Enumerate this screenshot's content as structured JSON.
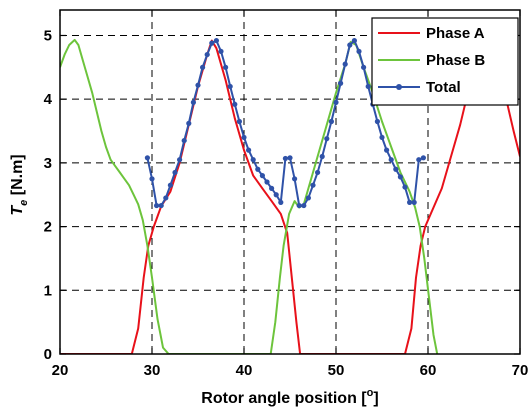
{
  "chart_data": {
    "type": "line",
    "title": "",
    "xlabel": "Rotor angle position [",
    "xlabel_sup": "o",
    "xlabel_suffix": "]",
    "ylabel_italic": "T",
    "ylabel_sub": "e",
    "ylabel_suffix": " [N.m]",
    "xlim": [
      20,
      70
    ],
    "ylim": [
      0,
      5.4
    ],
    "xticks": [
      20,
      30,
      40,
      50,
      60,
      70
    ],
    "yticks": [
      0,
      1,
      2,
      3,
      4,
      5
    ],
    "xtick_labels": [
      "20",
      "30",
      "40",
      "50",
      "60",
      "70"
    ],
    "ytick_labels": [
      "0",
      "1",
      "2",
      "3",
      "4",
      "5"
    ],
    "grid": true,
    "legend_position": "top-right",
    "series": [
      {
        "name": "Phase A",
        "color": "#e8111a",
        "marker": false,
        "points": [
          [
            20,
            0
          ],
          [
            27.8,
            0
          ],
          [
            28.5,
            0.4
          ],
          [
            29.1,
            1.2
          ],
          [
            29.6,
            1.7
          ],
          [
            30.2,
            2.0
          ],
          [
            31,
            2.32
          ],
          [
            32,
            2.55
          ],
          [
            33,
            3.0
          ],
          [
            34,
            3.6
          ],
          [
            35,
            4.2
          ],
          [
            36,
            4.7
          ],
          [
            36.5,
            4.92
          ],
          [
            37,
            4.8
          ],
          [
            38,
            4.3
          ],
          [
            39,
            3.7
          ],
          [
            40,
            3.2
          ],
          [
            41,
            2.8
          ],
          [
            42,
            2.6
          ],
          [
            43,
            2.4
          ],
          [
            44,
            2.2
          ],
          [
            44.7,
            1.9
          ],
          [
            45.2,
            1.2
          ],
          [
            45.7,
            0.5
          ],
          [
            46.1,
            0
          ],
          [
            57.5,
            0
          ],
          [
            58.2,
            0.4
          ],
          [
            58.7,
            1.2
          ],
          [
            59.2,
            1.7
          ],
          [
            59.7,
            2.0
          ],
          [
            60.6,
            2.3
          ],
          [
            61.5,
            2.6
          ],
          [
            62.5,
            3.1
          ],
          [
            63.5,
            3.6
          ],
          [
            64.5,
            4.2
          ],
          [
            65.3,
            4.6
          ],
          [
            66.5,
            4.9
          ],
          [
            67.5,
            4.5
          ],
          [
            68.5,
            4.0
          ],
          [
            69.3,
            3.5
          ],
          [
            70,
            3.1
          ]
        ]
      },
      {
        "name": "Phase B",
        "color": "#6dc43c",
        "marker": false,
        "points": [
          [
            20,
            4.5
          ],
          [
            20.5,
            4.7
          ],
          [
            21,
            4.85
          ],
          [
            21.6,
            4.93
          ],
          [
            22,
            4.85
          ],
          [
            22.5,
            4.6
          ],
          [
            23,
            4.35
          ],
          [
            23.5,
            4.1
          ],
          [
            24,
            3.8
          ],
          [
            24.5,
            3.5
          ],
          [
            25,
            3.25
          ],
          [
            25.5,
            3.05
          ],
          [
            26,
            2.95
          ],
          [
            26.5,
            2.85
          ],
          [
            27,
            2.75
          ],
          [
            27.5,
            2.65
          ],
          [
            28,
            2.5
          ],
          [
            28.5,
            2.35
          ],
          [
            29,
            2.1
          ],
          [
            29.5,
            1.7
          ],
          [
            30,
            1.2
          ],
          [
            30.6,
            0.55
          ],
          [
            31.2,
            0.1
          ],
          [
            31.8,
            0
          ],
          [
            42.9,
            0
          ],
          [
            43.4,
            0.5
          ],
          [
            43.9,
            1.2
          ],
          [
            44.3,
            1.7
          ],
          [
            44.9,
            2.2
          ],
          [
            45.5,
            2.4
          ],
          [
            46,
            2.3
          ],
          [
            46.5,
            2.35
          ],
          [
            47,
            2.6
          ],
          [
            48,
            3.1
          ],
          [
            49,
            3.6
          ],
          [
            50,
            4.1
          ],
          [
            51,
            4.55
          ],
          [
            51.6,
            4.9
          ],
          [
            52.2,
            4.85
          ],
          [
            53,
            4.5
          ],
          [
            54,
            4.1
          ],
          [
            55,
            3.65
          ],
          [
            56,
            3.25
          ],
          [
            57,
            2.85
          ],
          [
            58,
            2.55
          ],
          [
            58.6,
            2.3
          ],
          [
            59.1,
            2.0
          ],
          [
            59.6,
            1.5
          ],
          [
            60.1,
            0.9
          ],
          [
            60.6,
            0.3
          ],
          [
            61,
            0
          ]
        ]
      },
      {
        "name": "Total",
        "color": "#2f52a8",
        "marker": true,
        "points": [
          [
            29.5,
            3.08
          ],
          [
            30,
            2.75
          ],
          [
            30.5,
            2.33
          ],
          [
            31,
            2.33
          ],
          [
            31.5,
            2.45
          ],
          [
            32,
            2.65
          ],
          [
            32.5,
            2.85
          ],
          [
            33,
            3.05
          ],
          [
            33.5,
            3.35
          ],
          [
            34,
            3.62
          ],
          [
            34.5,
            3.95
          ],
          [
            35,
            4.22
          ],
          [
            35.5,
            4.5
          ],
          [
            36,
            4.7
          ],
          [
            36.5,
            4.88
          ],
          [
            37,
            4.92
          ],
          [
            37.5,
            4.75
          ],
          [
            38,
            4.5
          ],
          [
            38.5,
            4.2
          ],
          [
            39,
            3.92
          ],
          [
            39.5,
            3.65
          ],
          [
            40,
            3.4
          ],
          [
            40.5,
            3.2
          ],
          [
            41,
            3.05
          ],
          [
            41.5,
            2.9
          ],
          [
            42,
            2.8
          ],
          [
            42.5,
            2.7
          ],
          [
            43,
            2.6
          ],
          [
            43.5,
            2.5
          ],
          [
            44,
            2.38
          ],
          [
            44.5,
            3.07
          ],
          [
            45,
            3.08
          ],
          [
            45.5,
            2.75
          ],
          [
            46,
            2.33
          ],
          [
            46.5,
            2.33
          ],
          [
            47,
            2.45
          ],
          [
            47.5,
            2.65
          ],
          [
            48,
            2.85
          ],
          [
            48.5,
            3.1
          ],
          [
            49,
            3.38
          ],
          [
            49.5,
            3.65
          ],
          [
            50,
            3.95
          ],
          [
            50.5,
            4.25
          ],
          [
            51,
            4.55
          ],
          [
            51.5,
            4.85
          ],
          [
            52,
            4.92
          ],
          [
            52.5,
            4.75
          ],
          [
            53,
            4.5
          ],
          [
            53.5,
            4.2
          ],
          [
            54,
            3.92
          ],
          [
            54.5,
            3.65
          ],
          [
            55,
            3.4
          ],
          [
            55.5,
            3.2
          ],
          [
            56,
            3.05
          ],
          [
            56.5,
            2.9
          ],
          [
            57,
            2.78
          ],
          [
            57.5,
            2.62
          ],
          [
            58,
            2.38
          ],
          [
            58.5,
            2.38
          ],
          [
            59,
            3.05
          ],
          [
            59.5,
            3.08
          ]
        ]
      }
    ]
  }
}
